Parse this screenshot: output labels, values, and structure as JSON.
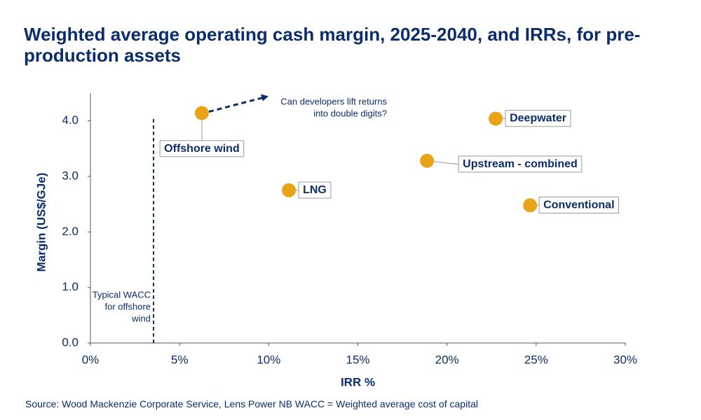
{
  "chart_data": {
    "type": "scatter",
    "title": "Weighted average operating cash margin, 2025-2040,  and IRRs, for pre-production assets",
    "x_label": "IRR %",
    "y_label": "Margin (US$/GJe)",
    "labels": [
      "Offshore wind",
      "LNG",
      "Upstream - combined",
      "Deepwater",
      "Conventional"
    ],
    "x": [
      6.25,
      11.13,
      18.88,
      22.73,
      24.66
    ],
    "values": [
      4.14,
      2.75,
      3.28,
      4.04,
      2.48
    ],
    "color": "#e8a317",
    "xlim": [
      0,
      30
    ],
    "xticks": [
      {
        "value": 0,
        "label": "0%"
      },
      {
        "value": 5,
        "label": "5%"
      },
      {
        "value": 10,
        "label": "10%"
      },
      {
        "value": 15,
        "label": "15%"
      },
      {
        "value": 20,
        "label": "20%"
      },
      {
        "value": 25,
        "label": "25%"
      },
      {
        "value": 30,
        "label": "30%"
      }
    ],
    "ylim": [
      0,
      4.5
    ],
    "yticks": [
      {
        "value": 0,
        "label": "0.0"
      },
      {
        "value": 1,
        "label": "1.0"
      },
      {
        "value": 2,
        "label": "2.0"
      },
      {
        "value": 3,
        "label": "3.0"
      },
      {
        "value": 4,
        "label": "4.0"
      }
    ],
    "wacc_line": {
      "value": 3.54,
      "text": [
        "Typical WACC",
        "for offshore",
        "wind"
      ]
    },
    "arrow_note": [
      "Can developers lift returns",
      "into double digits?"
    ],
    "source": "Source: Wood Mackenzie Corporate Service, Lens Power NB WACC = Weighted average cost of capital"
  }
}
